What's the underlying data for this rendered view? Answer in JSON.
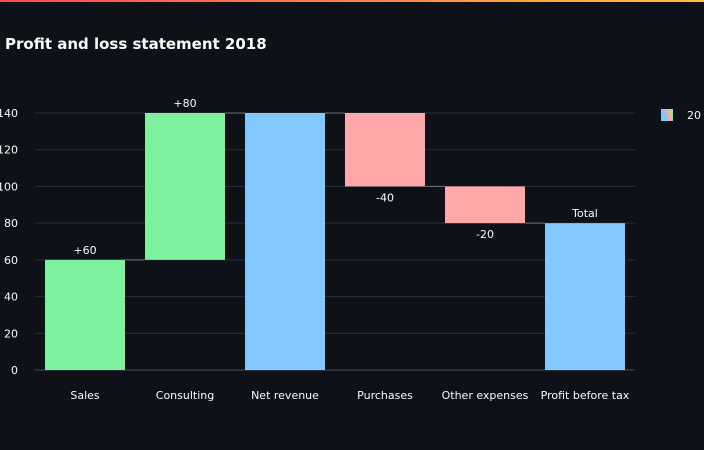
{
  "chart_data": {
    "type": "waterfall",
    "title": "Profit and loss statement 2018",
    "categories": [
      "Sales",
      "Consulting",
      "Net revenue",
      "Purchases",
      "Other expenses",
      "Profit before tax"
    ],
    "measures": [
      "relative",
      "relative",
      "total",
      "relative",
      "relative",
      "total"
    ],
    "values": [
      60,
      80,
      140,
      -40,
      -20,
      80
    ],
    "text_labels": [
      "+60",
      "+80",
      "",
      "-40",
      "-20",
      "Total"
    ],
    "ylim": [
      0,
      140
    ],
    "yticks": [
      0,
      20,
      40,
      60,
      80,
      100,
      120,
      140
    ],
    "grid": true,
    "colors": {
      "increasing": "#7ef09e",
      "decreasing": "#ffa8aa",
      "total": "#83c9ff"
    },
    "legend": {
      "label": "20",
      "position": "top-right"
    }
  }
}
